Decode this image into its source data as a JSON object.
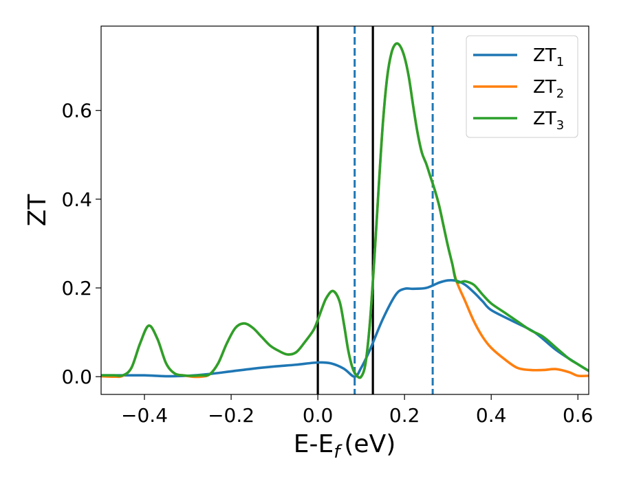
{
  "chart_data": {
    "type": "line",
    "xlabel": "E-E",
    "xlabel_subscript": "f",
    "xlabel_unit": "(eV)",
    "ylabel": "ZT",
    "xlim": [
      -0.5,
      0.625
    ],
    "ylim": [
      -0.04,
      0.79
    ],
    "x_ticks": [
      -0.4,
      -0.2,
      0.0,
      0.2,
      0.4,
      0.6
    ],
    "x_tick_labels": [
      "−0.4",
      "−0.2",
      "0.0",
      "0.2",
      "0.4",
      "0.6"
    ],
    "y_ticks": [
      0.0,
      0.2,
      0.4,
      0.6
    ],
    "y_tick_labels": [
      "0.0",
      "0.2",
      "0.4",
      "0.6"
    ],
    "grid": false,
    "legend_position": "top-right",
    "vertical_lines": [
      {
        "x": 0.0,
        "style": "solid",
        "color": "#000000"
      },
      {
        "x": 0.127,
        "style": "solid",
        "color": "#000000"
      },
      {
        "x": 0.085,
        "style": "dashed",
        "color": "#1f77b4"
      },
      {
        "x": 0.265,
        "style": "dashed",
        "color": "#1f77b4"
      }
    ],
    "series": [
      {
        "name": "ZT",
        "subscript": "1",
        "color": "#1f77b4",
        "x": [
          -0.5,
          -0.45,
          -0.4,
          -0.35,
          -0.3,
          -0.25,
          -0.2,
          -0.15,
          -0.1,
          -0.05,
          0.0,
          0.03,
          0.06,
          0.085,
          0.1,
          0.12,
          0.15,
          0.18,
          0.2,
          0.22,
          0.25,
          0.28,
          0.3,
          0.32,
          0.34,
          0.36,
          0.38,
          0.4,
          0.45,
          0.5,
          0.55,
          0.6,
          0.625
        ],
        "y": [
          0.003,
          0.003,
          0.003,
          0.001,
          0.002,
          0.006,
          0.012,
          0.018,
          0.023,
          0.027,
          0.032,
          0.03,
          0.018,
          0.0,
          0.02,
          0.06,
          0.13,
          0.185,
          0.198,
          0.198,
          0.2,
          0.212,
          0.217,
          0.216,
          0.207,
          0.19,
          0.17,
          0.15,
          0.125,
          0.1,
          0.06,
          0.028,
          0.013
        ]
      },
      {
        "name": "ZT",
        "subscript": "2",
        "color": "#ff7f0e",
        "x": [
          -0.5,
          -0.47,
          -0.45,
          -0.43,
          -0.41,
          -0.39,
          -0.37,
          -0.35,
          -0.33,
          -0.31,
          -0.29,
          -0.27,
          -0.25,
          -0.23,
          -0.21,
          -0.19,
          -0.17,
          -0.15,
          -0.13,
          -0.11,
          -0.09,
          -0.07,
          -0.05,
          -0.03,
          -0.01,
          0.0,
          0.01,
          0.02,
          0.035,
          0.05,
          0.06,
          0.07,
          0.08,
          0.09,
          0.1,
          0.11,
          0.12,
          0.13,
          0.14,
          0.15,
          0.16,
          0.17,
          0.18,
          0.19,
          0.2,
          0.21,
          0.22,
          0.23,
          0.24,
          0.25,
          0.26,
          0.27,
          0.28,
          0.29,
          0.3,
          0.31,
          0.32,
          0.34,
          0.36,
          0.38,
          0.4,
          0.43,
          0.46,
          0.49,
          0.52,
          0.55,
          0.58,
          0.6,
          0.625
        ],
        "y": [
          0.001,
          0.0,
          0.002,
          0.02,
          0.075,
          0.115,
          0.085,
          0.03,
          0.007,
          0.003,
          0.0,
          0.0,
          0.005,
          0.03,
          0.075,
          0.11,
          0.12,
          0.11,
          0.09,
          0.07,
          0.058,
          0.05,
          0.055,
          0.078,
          0.105,
          0.128,
          0.155,
          0.178,
          0.193,
          0.17,
          0.12,
          0.06,
          0.02,
          0.002,
          0.0,
          0.03,
          0.12,
          0.26,
          0.42,
          0.57,
          0.675,
          0.73,
          0.75,
          0.745,
          0.72,
          0.675,
          0.61,
          0.55,
          0.505,
          0.48,
          0.45,
          0.42,
          0.385,
          0.34,
          0.295,
          0.255,
          0.215,
          0.17,
          0.125,
          0.09,
          0.065,
          0.04,
          0.02,
          0.015,
          0.015,
          0.017,
          0.01,
          0.002,
          0.002
        ]
      },
      {
        "name": "ZT",
        "subscript": "3",
        "color": "#2ca02c",
        "x": [
          -0.5,
          -0.47,
          -0.45,
          -0.43,
          -0.41,
          -0.39,
          -0.37,
          -0.35,
          -0.33,
          -0.31,
          -0.29,
          -0.27,
          -0.25,
          -0.23,
          -0.21,
          -0.19,
          -0.17,
          -0.15,
          -0.13,
          -0.11,
          -0.09,
          -0.07,
          -0.05,
          -0.03,
          -0.01,
          0.0,
          0.01,
          0.02,
          0.035,
          0.05,
          0.06,
          0.07,
          0.08,
          0.09,
          0.1,
          0.11,
          0.12,
          0.13,
          0.14,
          0.15,
          0.16,
          0.17,
          0.18,
          0.19,
          0.2,
          0.21,
          0.22,
          0.23,
          0.24,
          0.25,
          0.26,
          0.27,
          0.28,
          0.29,
          0.3,
          0.31,
          0.32,
          0.34,
          0.36,
          0.38,
          0.4,
          0.43,
          0.46,
          0.49,
          0.52,
          0.55,
          0.58,
          0.6,
          0.625
        ],
        "y": [
          0.003,
          0.003,
          0.003,
          0.02,
          0.075,
          0.115,
          0.085,
          0.03,
          0.007,
          0.003,
          0.002,
          0.003,
          0.005,
          0.03,
          0.075,
          0.11,
          0.12,
          0.11,
          0.09,
          0.07,
          0.058,
          0.05,
          0.055,
          0.078,
          0.105,
          0.128,
          0.155,
          0.178,
          0.193,
          0.17,
          0.12,
          0.06,
          0.02,
          0.002,
          0.0,
          0.03,
          0.12,
          0.26,
          0.42,
          0.57,
          0.675,
          0.73,
          0.75,
          0.745,
          0.72,
          0.675,
          0.61,
          0.55,
          0.505,
          0.48,
          0.45,
          0.42,
          0.385,
          0.34,
          0.295,
          0.255,
          0.215,
          0.215,
          0.207,
          0.185,
          0.165,
          0.145,
          0.125,
          0.105,
          0.09,
          0.065,
          0.04,
          0.028,
          0.013
        ]
      }
    ]
  }
}
